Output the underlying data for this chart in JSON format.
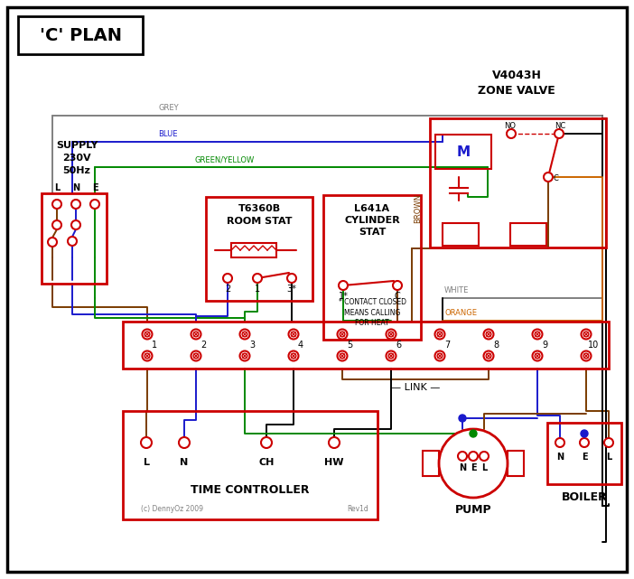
{
  "bg": "#ffffff",
  "red": "#cc0000",
  "blue": "#1a1acc",
  "green": "#008800",
  "grey": "#808080",
  "brown": "#7a3b00",
  "orange": "#cc6600",
  "black": "#000000",
  "lw": 1.4,
  "title": "'C' PLAN",
  "zone_valve_label": "V4043H\nZONE VALVE",
  "room_stat_label": "T6360B\nROOM STAT",
  "cyl_stat_label": "L641A\nCYLINDER\nSTAT",
  "time_ctrl_label": "TIME CONTROLLER",
  "pump_label": "PUMP",
  "boiler_label": "BOILER",
  "link_label": "LINK",
  "copyright": "(c) DennyOz 2009",
  "rev": "Rev1d"
}
